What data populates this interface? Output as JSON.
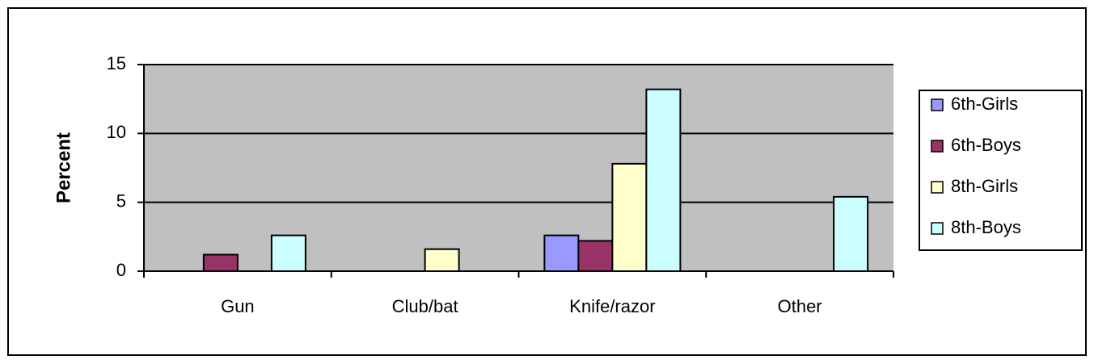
{
  "chart_data": {
    "type": "bar",
    "y_label": "Percent",
    "categories": [
      "Gun",
      "Club/bat",
      "Knife/razor",
      "Other"
    ],
    "series": [
      {
        "name": "6th-Girls",
        "color": "#9999ff",
        "values": [
          0,
          0,
          2.6,
          0
        ]
      },
      {
        "name": "6th-Boys",
        "color": "#993366",
        "values": [
          1.2,
          0,
          2.2,
          0
        ]
      },
      {
        "name": "8th-Girls",
        "color": "#ffffcc",
        "values": [
          0,
          1.6,
          7.8,
          0
        ]
      },
      {
        "name": "8th-Boys",
        "color": "#ccffff",
        "values": [
          2.6,
          0,
          13.2,
          5.4
        ]
      }
    ],
    "ylim": [
      0,
      15
    ],
    "yticks": [
      0,
      5,
      10,
      15
    ],
    "grid": true,
    "legend": "right"
  }
}
